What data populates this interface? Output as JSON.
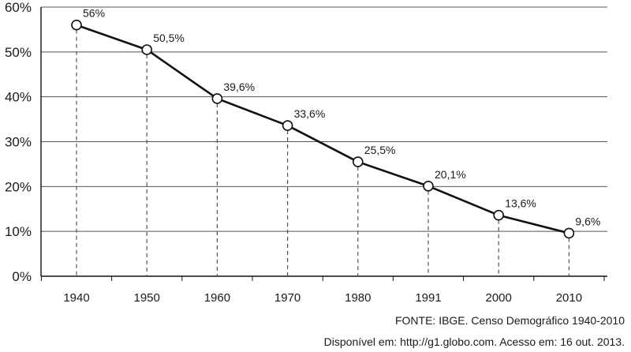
{
  "chart_data": {
    "type": "line",
    "title": "",
    "xlabel": "",
    "ylabel": "",
    "categories": [
      "1940",
      "1950",
      "1960",
      "1970",
      "1980",
      "1991",
      "2000",
      "2010"
    ],
    "series": [
      {
        "values": [
          56,
          50.5,
          39.6,
          33.6,
          25.5,
          20.1,
          13.6,
          9.6
        ],
        "labels": [
          "56%",
          "50,5%",
          "39,6%",
          "33,6%",
          "25,5%",
          "20,1%",
          "13,6%",
          "9,6%"
        ]
      }
    ],
    "ylim": [
      0,
      60
    ],
    "yticks": [
      0,
      10,
      20,
      30,
      40,
      50,
      60
    ],
    "ytick_labels": [
      "0%",
      "10%",
      "20%",
      "30%",
      "40%",
      "50%",
      "60%"
    ],
    "grid": "horizontal",
    "legend": "none",
    "colors": {
      "line": "#111111",
      "marker_fill": "#ffffff",
      "grid": "#555555",
      "dashes": "#555555"
    }
  },
  "source": {
    "line1": "FONTE: IBGE. Censo Demográfico 1940-2010",
    "line2": "Disponível em: http://g1.globo.com. Acesso em: 16 out. 2013."
  }
}
